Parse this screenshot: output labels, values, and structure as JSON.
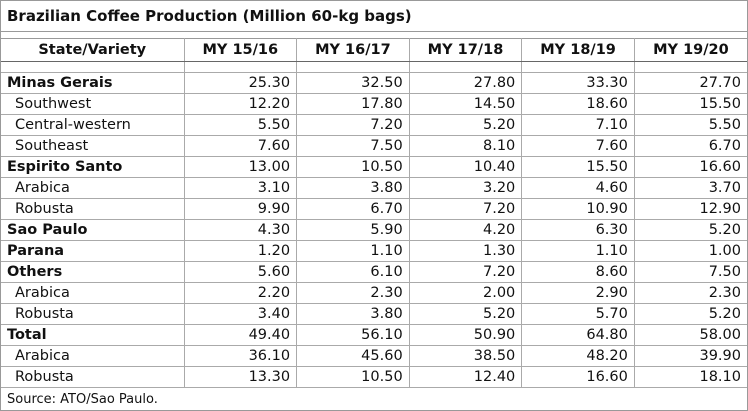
{
  "title": "Brazilian Coffee Production (Million 60-kg bags)",
  "table": {
    "header": [
      "State/Variety",
      "MY 15/16",
      "MY 16/17",
      "MY 17/18",
      "MY 18/19",
      "MY 19/20"
    ],
    "rows": [
      {
        "label": "Minas Gerais",
        "bold": true,
        "values": [
          "25.30",
          "32.50",
          "27.80",
          "33.30",
          "27.70"
        ]
      },
      {
        "label": "Southwest",
        "bold": false,
        "values": [
          "12.20",
          "17.80",
          "14.50",
          "18.60",
          "15.50"
        ]
      },
      {
        "label": "Central-western",
        "bold": false,
        "values": [
          "5.50",
          "7.20",
          "5.20",
          "7.10",
          "5.50"
        ]
      },
      {
        "label": "Southeast",
        "bold": false,
        "values": [
          "7.60",
          "7.50",
          "8.10",
          "7.60",
          "6.70"
        ]
      },
      {
        "label": "Espirito Santo",
        "bold": true,
        "values": [
          "13.00",
          "10.50",
          "10.40",
          "15.50",
          "16.60"
        ]
      },
      {
        "label": "Arabica",
        "bold": false,
        "values": [
          "3.10",
          "3.80",
          "3.20",
          "4.60",
          "3.70"
        ]
      },
      {
        "label": "Robusta",
        "bold": false,
        "values": [
          "9.90",
          "6.70",
          "7.20",
          "10.90",
          "12.90"
        ]
      },
      {
        "label": "Sao Paulo",
        "bold": true,
        "values": [
          "4.30",
          "5.90",
          "4.20",
          "6.30",
          "5.20"
        ]
      },
      {
        "label": "Parana",
        "bold": true,
        "values": [
          "1.20",
          "1.10",
          "1.30",
          "1.10",
          "1.00"
        ]
      },
      {
        "label": "Others",
        "bold": true,
        "values": [
          "5.60",
          "6.10",
          "7.20",
          "8.60",
          "7.50"
        ]
      },
      {
        "label": "Arabica",
        "bold": false,
        "values": [
          "2.20",
          "2.30",
          "2.00",
          "2.90",
          "2.30"
        ]
      },
      {
        "label": "Robusta",
        "bold": false,
        "values": [
          "3.40",
          "3.80",
          "5.20",
          "5.70",
          "5.20"
        ]
      },
      {
        "label": "Total",
        "bold": true,
        "values": [
          "49.40",
          "56.10",
          "50.90",
          "64.80",
          "58.00"
        ]
      },
      {
        "label": "Arabica",
        "bold": false,
        "values": [
          "36.10",
          "45.60",
          "38.50",
          "48.20",
          "39.90"
        ]
      },
      {
        "label": "Robusta",
        "bold": false,
        "values": [
          "13.30",
          "10.50",
          "12.40",
          "16.60",
          "18.10"
        ]
      }
    ]
  },
  "source": "Source: ATO/Sao Paulo."
}
